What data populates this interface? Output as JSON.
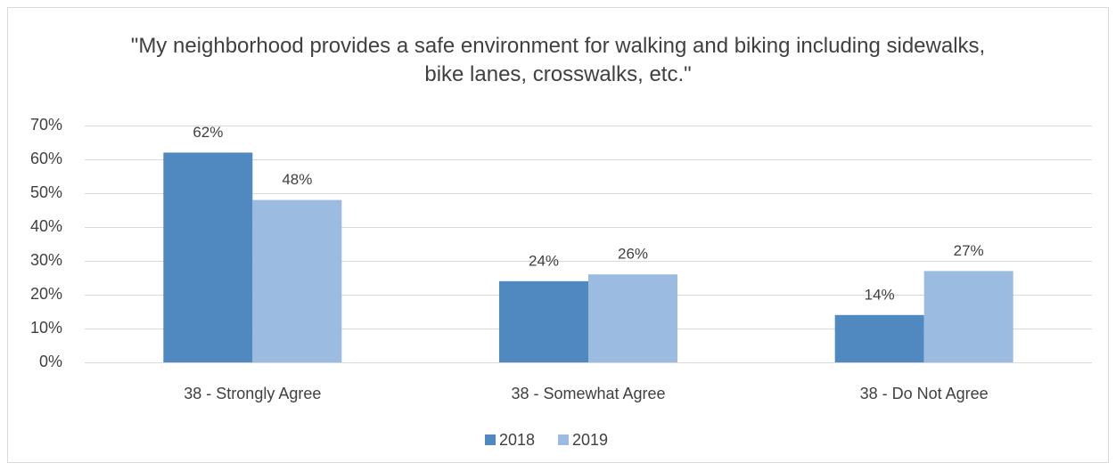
{
  "chart_data": {
    "type": "bar",
    "title": "\"My neighborhood provides a safe environment for walking and biking including sidewalks, bike lanes, crosswalks, etc.\"",
    "categories": [
      "38 - Strongly Agree",
      "38 - Somewhat Agree",
      "38 - Do Not Agree"
    ],
    "series": [
      {
        "name": "2018",
        "color": "#4f89bf",
        "values": [
          62,
          24,
          14
        ],
        "value_labels": [
          "62%",
          "24%",
          "14%"
        ]
      },
      {
        "name": "2019",
        "color": "#9bbbe0",
        "values": [
          48,
          26,
          27
        ],
        "value_labels": [
          "48%",
          "26%",
          "27%"
        ]
      }
    ],
    "ylim": [
      0,
      70
    ],
    "yticks": [
      {
        "value": 0,
        "label": "0%"
      },
      {
        "value": 10,
        "label": "10%"
      },
      {
        "value": 20,
        "label": "20%"
      },
      {
        "value": 30,
        "label": "30%"
      },
      {
        "value": 40,
        "label": "40%"
      },
      {
        "value": 50,
        "label": "50%"
      },
      {
        "value": 60,
        "label": "60%"
      },
      {
        "value": 70,
        "label": "70%"
      }
    ],
    "grid": true,
    "legend": "bottom"
  }
}
